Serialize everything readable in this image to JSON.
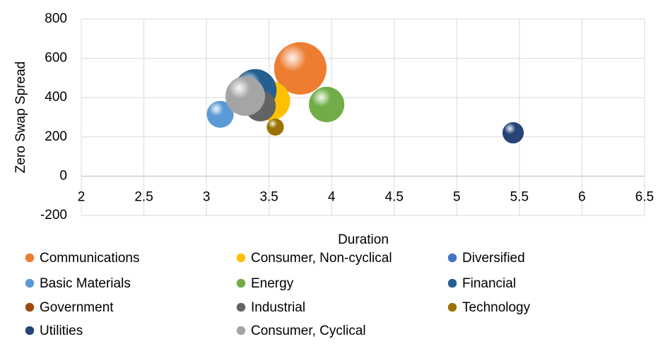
{
  "chart_data": {
    "type": "bubble",
    "x_label": "Duration",
    "y_label": "Zero Swap Spread",
    "xlim": [
      2,
      6.5
    ],
    "xticks": [
      2,
      2.5,
      3,
      3.5,
      4,
      4.5,
      5,
      5.5,
      6,
      6.5
    ],
    "ylim": [
      -200,
      800
    ],
    "yticks": [
      -200,
      0,
      200,
      400,
      600,
      800
    ],
    "grid": true,
    "legend": "bottom",
    "series": [
      {
        "name": "Communications",
        "color": "#ed7d31",
        "x": [
          3.75
        ],
        "values": [
          549
        ],
        "sizes": [
          1370
        ]
      },
      {
        "name": "Consumer, Non-cyclical",
        "color": "#ffc000",
        "x": [
          3.51
        ],
        "values": [
          384
        ],
        "sizes": [
          780
        ]
      },
      {
        "name": "Diversified",
        "color": "#4472c4",
        "x": [
          3.4
        ],
        "values": [
          380
        ],
        "sizes": [
          400
        ]
      },
      {
        "name": "Basic Materials",
        "color": "#5b9bd5",
        "x": [
          3.11
        ],
        "values": [
          315
        ],
        "sizes": [
          360
        ]
      },
      {
        "name": "Energy",
        "color": "#70ad47",
        "x": [
          3.96
        ],
        "values": [
          365
        ],
        "sizes": [
          625
        ]
      },
      {
        "name": "Financial",
        "color": "#255e91",
        "x": [
          3.39
        ],
        "values": [
          437
        ],
        "sizes": [
          900
        ]
      },
      {
        "name": "Government",
        "color": "#9e480e",
        "x": [
          3.4
        ],
        "values": [
          360
        ],
        "sizes": [
          300
        ]
      },
      {
        "name": "Industrial",
        "color": "#636363",
        "x": [
          3.43
        ],
        "values": [
          358
        ],
        "sizes": [
          480
        ]
      },
      {
        "name": "Technology",
        "color": "#997300",
        "x": [
          3.55
        ],
        "values": [
          250
        ],
        "sizes": [
          144
        ]
      },
      {
        "name": "Utilities",
        "color": "#264478",
        "x": [
          5.45
        ],
        "values": [
          221
        ],
        "sizes": [
          225
        ]
      },
      {
        "name": "Consumer, Cyclical",
        "color": "#a5a5a5",
        "x": [
          3.31
        ],
        "values": [
          408
        ],
        "sizes": [
          780
        ]
      }
    ]
  }
}
